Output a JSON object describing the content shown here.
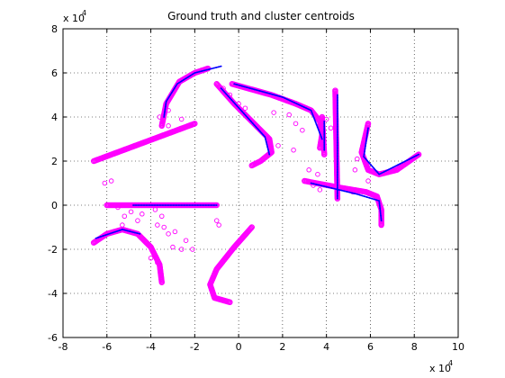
{
  "chart_data": {
    "type": "scatter",
    "title": "Ground truth and cluster centroids",
    "xlabel": "",
    "ylabel": "",
    "x_exponent_label": "x 10",
    "y_exponent_label": "x 10",
    "exponent": "4",
    "xlim": [
      -8,
      10
    ],
    "ylim": [
      -6,
      8
    ],
    "x_ticks": [
      -8,
      -6,
      -4,
      -2,
      0,
      2,
      4,
      6,
      8,
      10
    ],
    "y_ticks": [
      -6,
      -4,
      -2,
      0,
      2,
      4,
      6,
      8
    ],
    "grid": true,
    "colors": {
      "ground_truth": "#ff00ff",
      "centroids": "#0000ff"
    },
    "ground_truth_paths": [
      {
        "points": [
          [
            -6.6,
            2.0
          ],
          [
            -2.0,
            3.7
          ]
        ]
      },
      {
        "points": [
          [
            -3.5,
            3.6
          ],
          [
            -3.3,
            4.6
          ],
          [
            -2.7,
            5.6
          ],
          [
            -2.0,
            6.0
          ],
          [
            -1.4,
            6.2
          ]
        ]
      },
      {
        "points": [
          [
            -1.0,
            5.5
          ],
          [
            -0.2,
            4.6
          ],
          [
            0.8,
            3.6
          ],
          [
            1.4,
            3.0
          ],
          [
            1.5,
            2.4
          ],
          [
            1.0,
            2.0
          ],
          [
            0.6,
            1.8
          ]
        ]
      },
      {
        "points": [
          [
            -0.3,
            5.5
          ],
          [
            1.5,
            5.0
          ],
          [
            2.6,
            4.6
          ],
          [
            3.3,
            4.3
          ],
          [
            3.7,
            3.8
          ],
          [
            3.8,
            3.2
          ],
          [
            3.7,
            2.6
          ]
        ]
      },
      {
        "points": [
          [
            4.4,
            5.2
          ],
          [
            4.5,
            0.3
          ]
        ]
      },
      {
        "points": [
          [
            3.8,
            4.0
          ],
          [
            3.9,
            2.3
          ]
        ]
      },
      {
        "points": [
          [
            5.9,
            3.7
          ],
          [
            5.6,
            2.4
          ],
          [
            5.9,
            1.6
          ],
          [
            6.4,
            1.4
          ],
          [
            7.2,
            1.6
          ],
          [
            8.2,
            2.3
          ]
        ]
      },
      {
        "points": [
          [
            3.0,
            1.1
          ],
          [
            4.6,
            0.8
          ],
          [
            5.8,
            0.6
          ],
          [
            6.3,
            0.4
          ],
          [
            6.5,
            -0.2
          ],
          [
            6.5,
            -0.9
          ]
        ]
      },
      {
        "points": [
          [
            -6.0,
            0.0
          ],
          [
            -1.0,
            0.0
          ]
        ]
      },
      {
        "points": [
          [
            -6.6,
            -1.7
          ],
          [
            -6.0,
            -1.3
          ],
          [
            -5.3,
            -1.1
          ],
          [
            -4.6,
            -1.3
          ],
          [
            -4.0,
            -1.9
          ],
          [
            -3.6,
            -2.7
          ],
          [
            -3.5,
            -3.5
          ]
        ]
      },
      {
        "points": [
          [
            0.6,
            -1.0
          ],
          [
            -0.2,
            -1.9
          ],
          [
            -1.0,
            -2.9
          ],
          [
            -1.3,
            -3.6
          ],
          [
            -1.1,
            -4.2
          ],
          [
            -0.4,
            -4.4
          ]
        ]
      }
    ],
    "centroid_paths": [
      {
        "points": [
          [
            -3.4,
            4.0
          ],
          [
            -3.3,
            4.7
          ],
          [
            -2.8,
            5.5
          ],
          [
            -2.0,
            6.0
          ],
          [
            -0.8,
            6.3
          ]
        ]
      },
      {
        "points": [
          [
            -0.8,
            5.3
          ],
          [
            1.2,
            3.1
          ],
          [
            1.4,
            2.3
          ]
        ]
      },
      {
        "points": [
          [
            -0.2,
            5.5
          ],
          [
            2.0,
            4.9
          ],
          [
            3.3,
            4.3
          ],
          [
            3.8,
            3.0
          ]
        ]
      },
      {
        "points": [
          [
            4.5,
            5.0
          ],
          [
            4.5,
            0.3
          ]
        ]
      },
      {
        "points": [
          [
            3.9,
            3.8
          ],
          [
            3.9,
            2.5
          ]
        ]
      },
      {
        "points": [
          [
            5.9,
            3.5
          ],
          [
            5.7,
            2.2
          ],
          [
            6.4,
            1.4
          ],
          [
            8.2,
            2.3
          ]
        ]
      },
      {
        "points": [
          [
            3.3,
            1.0
          ],
          [
            5.4,
            0.5
          ],
          [
            6.4,
            0.2
          ],
          [
            6.5,
            -0.7
          ]
        ]
      },
      {
        "points": [
          [
            -4.8,
            0.0
          ],
          [
            -1.0,
            0.0
          ]
        ]
      },
      {
        "points": [
          [
            -6.5,
            -1.5
          ],
          [
            -5.3,
            -1.1
          ],
          [
            -4.5,
            -1.3
          ]
        ]
      }
    ],
    "outliers": [
      [
        -3.2,
        4.3
      ],
      [
        -2.6,
        3.9
      ],
      [
        -3.2,
        3.6
      ],
      [
        -3.6,
        4.0
      ],
      [
        -6.1,
        1.0
      ],
      [
        -5.8,
        1.1
      ],
      [
        -0.7,
        5.3
      ],
      [
        -0.4,
        5.0
      ],
      [
        0.0,
        4.6
      ],
      [
        0.3,
        4.4
      ],
      [
        1.6,
        4.2
      ],
      [
        2.3,
        4.1
      ],
      [
        2.6,
        3.7
      ],
      [
        2.9,
        3.4
      ],
      [
        1.8,
        2.7
      ],
      [
        2.5,
        2.5
      ],
      [
        3.2,
        1.6
      ],
      [
        3.6,
        1.4
      ],
      [
        4.0,
        3.9
      ],
      [
        4.2,
        3.5
      ],
      [
        5.4,
        2.1
      ],
      [
        5.3,
        1.6
      ],
      [
        5.9,
        1.1
      ],
      [
        3.4,
        0.9
      ],
      [
        3.7,
        0.7
      ],
      [
        5.2,
        0.6
      ],
      [
        -5.5,
        -0.1
      ],
      [
        -5.2,
        -0.5
      ],
      [
        -4.9,
        -0.3
      ],
      [
        -4.4,
        -0.4
      ],
      [
        -3.8,
        -0.2
      ],
      [
        -3.5,
        -0.5
      ],
      [
        -4.6,
        -0.7
      ],
      [
        -5.3,
        -0.9
      ],
      [
        -3.7,
        -0.9
      ],
      [
        -3.4,
        -1.0
      ],
      [
        -3.2,
        -1.3
      ],
      [
        -2.9,
        -1.2
      ],
      [
        -2.4,
        -1.6
      ],
      [
        -2.1,
        -2.0
      ],
      [
        -3.0,
        -1.9
      ],
      [
        -2.6,
        -2.0
      ],
      [
        -1.0,
        -0.7
      ],
      [
        -0.9,
        -0.9
      ],
      [
        -4.0,
        -2.4
      ],
      [
        -3.7,
        -2.6
      ]
    ]
  }
}
